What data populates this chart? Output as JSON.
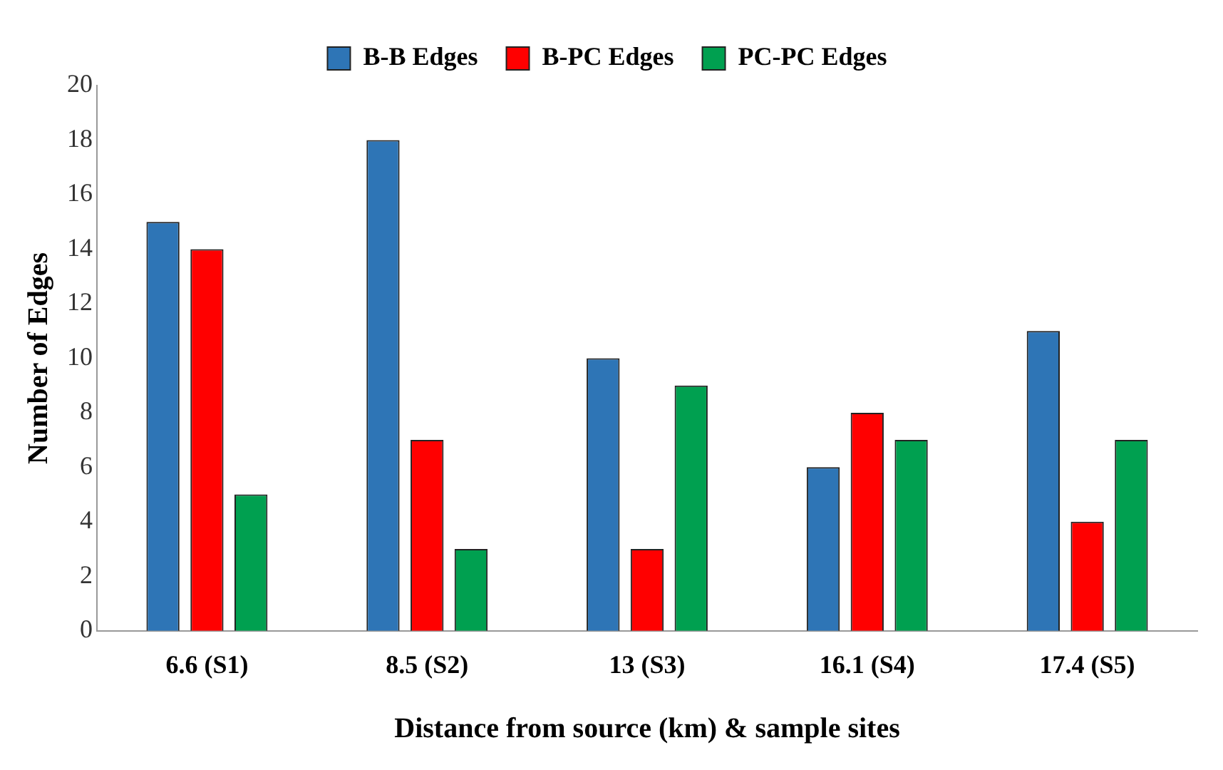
{
  "chart_data": {
    "type": "bar",
    "xlabel": "Distance from source (km) & sample sites",
    "ylabel": "Number of Edges",
    "categories": [
      "6.6 (S1)",
      "8.5 (S2)",
      "13 (S3)",
      "16.1 (S4)",
      "17.4 (S5)"
    ],
    "series": [
      {
        "name": "B-B Edges",
        "color": "#2e75b6",
        "values": [
          15,
          18,
          10,
          6,
          11
        ]
      },
      {
        "name": "B-PC Edges",
        "color": "#ff0000",
        "values": [
          14,
          7,
          3,
          8,
          4
        ]
      },
      {
        "name": "PC-PC Edges",
        "color": "#00a050",
        "values": [
          5,
          3,
          9,
          7,
          7
        ]
      }
    ],
    "ylim": [
      0,
      20
    ],
    "yticks": [
      0,
      2,
      4,
      6,
      8,
      10,
      12,
      14,
      16,
      18,
      20
    ],
    "grid": false,
    "legend": "top"
  }
}
